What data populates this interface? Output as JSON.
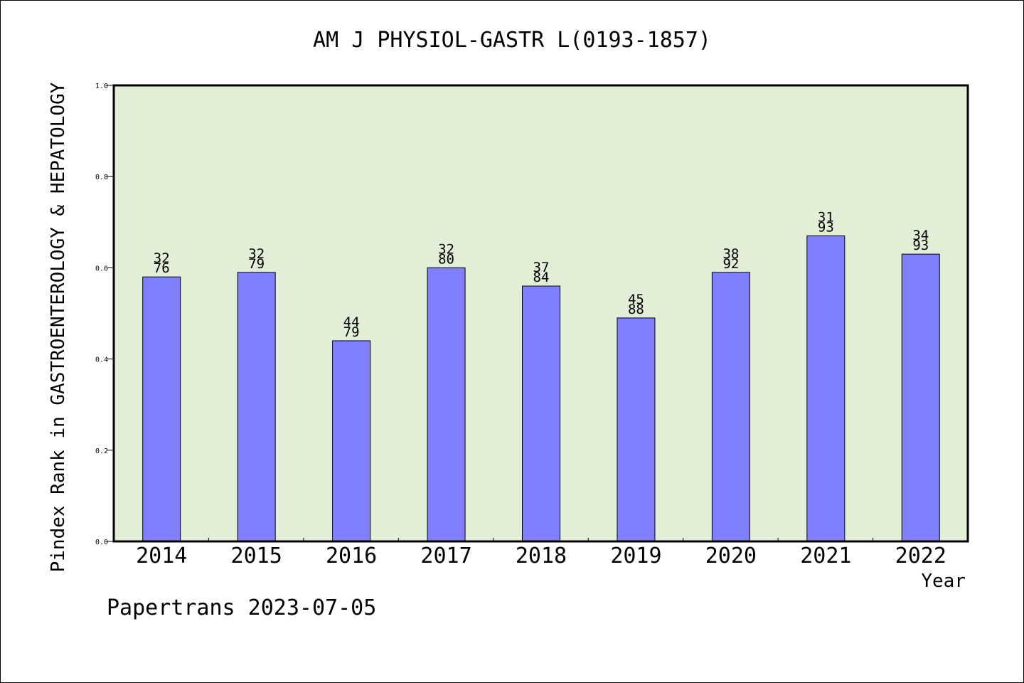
{
  "chart_data": {
    "type": "bar",
    "title": "AM J PHYSIOL-GASTR L(0193-1857)",
    "xlabel": "Year",
    "ylabel": "Pindex Rank in GASTROENTEROLOGY & HEPATOLOGY",
    "ylim": [
      0,
      1.0
    ],
    "yticks": [
      "0.0",
      "0.2",
      "0.4",
      "0.6",
      "0.8",
      "1.0"
    ],
    "categories": [
      "2014",
      "2015",
      "2016",
      "2017",
      "2018",
      "2019",
      "2020",
      "2021",
      "2022"
    ],
    "values": [
      0.58,
      0.59,
      0.44,
      0.6,
      0.56,
      0.49,
      0.59,
      0.67,
      0.63
    ],
    "bar_labels": [
      {
        "rank": "32",
        "total": "76"
      },
      {
        "rank": "32",
        "total": "79"
      },
      {
        "rank": "44",
        "total": "79"
      },
      {
        "rank": "32",
        "total": "80"
      },
      {
        "rank": "37",
        "total": "84"
      },
      {
        "rank": "45",
        "total": "88"
      },
      {
        "rank": "38",
        "total": "92"
      },
      {
        "rank": "31",
        "total": "93"
      },
      {
        "rank": "34",
        "total": "93"
      }
    ],
    "grid": false,
    "colors": {
      "bar": "#8080ff",
      "plot_background": "#e2efd6",
      "axis": "#000000"
    }
  },
  "footer": "Papertrans 2023-07-05"
}
